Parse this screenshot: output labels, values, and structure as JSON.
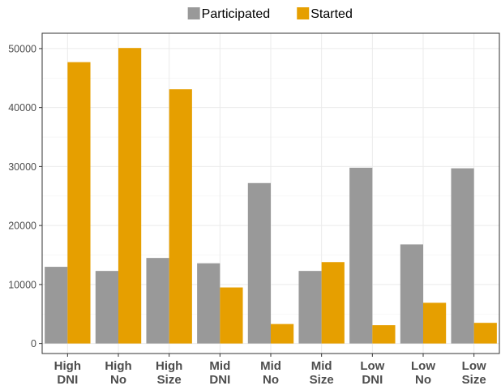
{
  "chart_data": {
    "type": "bar",
    "categories": [
      [
        "High",
        "DNI"
      ],
      [
        "High",
        "No"
      ],
      [
        "High",
        "Size"
      ],
      [
        "Mid",
        "DNI"
      ],
      [
        "Mid",
        "No"
      ],
      [
        "Mid",
        "Size"
      ],
      [
        "Low",
        "DNI"
      ],
      [
        "Low",
        "No"
      ],
      [
        "Low",
        "Size"
      ]
    ],
    "series": [
      {
        "name": "Participated",
        "color": "#999999",
        "values": [
          13000,
          12300,
          14500,
          13600,
          27200,
          12300,
          29800,
          16800,
          29700
        ]
      },
      {
        "name": "Started",
        "color": "#E69F00",
        "values": [
          47700,
          50100,
          43100,
          9500,
          3300,
          13800,
          3100,
          6900,
          3500
        ]
      }
    ],
    "y_ticks": [
      0,
      10000,
      20000,
      30000,
      40000,
      50000
    ],
    "ylim": [
      -1700,
      52600
    ],
    "grid": true,
    "legend_position": "top"
  }
}
